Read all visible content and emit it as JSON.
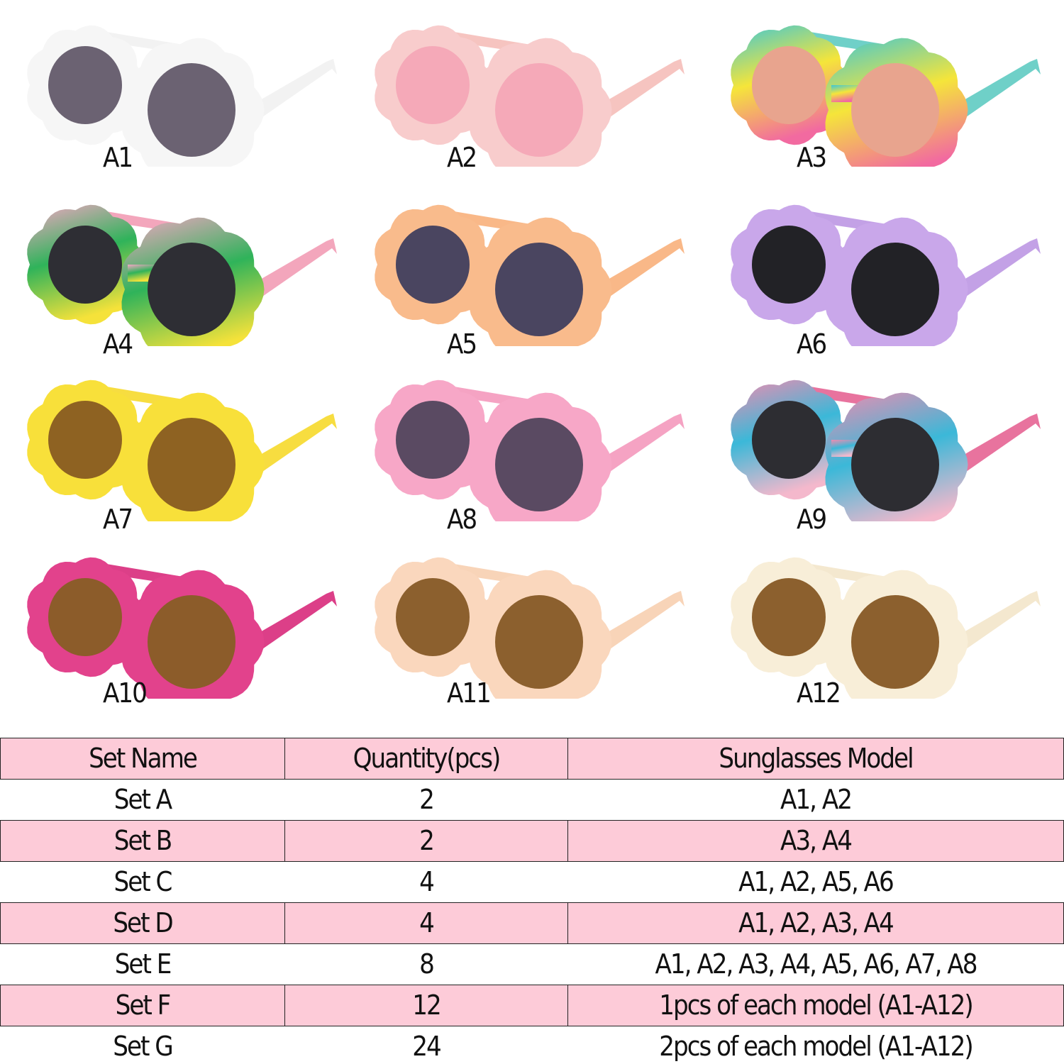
{
  "products": [
    {
      "label": "A1",
      "frame": [
        "#f6f6f6"
      ],
      "lens": "#6b6272",
      "arm": "#f2f2f2"
    },
    {
      "label": "A2",
      "frame": [
        "#f8cccc"
      ],
      "lens": "#f5a9b8",
      "arm": "#f6c4c0"
    },
    {
      "label": "A3",
      "frame": [
        "#3ec7d6",
        "#f5e53a",
        "#f26aa0"
      ],
      "lens": "#e8a48e",
      "arm": "#6fd0c8"
    },
    {
      "label": "A4",
      "frame": [
        "#f4a6c4",
        "#2fb35a",
        "#f5e23a"
      ],
      "lens": "#2e2e34",
      "arm": "#f3a6bc"
    },
    {
      "label": "A5",
      "frame": [
        "#f9bb8c"
      ],
      "lens": "#4a4560",
      "arm": "#f9b888"
    },
    {
      "label": "A6",
      "frame": [
        "#c9a7ea"
      ],
      "lens": "#222226",
      "arm": "#c3a1e6"
    },
    {
      "label": "A7",
      "frame": [
        "#f8e03a"
      ],
      "lens": "#8e6222",
      "arm": "#f7dd40"
    },
    {
      "label": "A8",
      "frame": [
        "#f7a7c7"
      ],
      "lens": "#5a4a62",
      "arm": "#f5a3c3"
    },
    {
      "label": "A9",
      "frame": [
        "#f08cb0",
        "#3bb8d8",
        "#f4b8cc"
      ],
      "lens": "#2d2d32",
      "arm": "#e8739e"
    },
    {
      "label": "A10",
      "frame": [
        "#e2428c"
      ],
      "lens": "#8c5c2a",
      "arm": "#dc3f88"
    },
    {
      "label": "A11",
      "frame": [
        "#fad7bd"
      ],
      "lens": "#8c602e",
      "arm": "#f8d4b8"
    },
    {
      "label": "A12",
      "frame": [
        "#f8eed8"
      ],
      "lens": "#8c602e",
      "arm": "#f4e8cf"
    }
  ],
  "table": {
    "headers": [
      "Set Name",
      "Quantity(pcs)",
      "Sunglasses Model"
    ],
    "rows": [
      [
        "Set A",
        "2",
        "A1, A2"
      ],
      [
        "Set B",
        "2",
        "A3, A4"
      ],
      [
        "Set C",
        "4",
        "A1, A2, A5, A6"
      ],
      [
        "Set D",
        "4",
        "A1, A2, A3, A4"
      ],
      [
        "Set E",
        "8",
        "A1, A2, A3, A4, A5, A6, A7, A8"
      ],
      [
        "Set F",
        "12",
        "1pcs of each model (A1-A12)"
      ],
      [
        "Set G",
        "24",
        "2pcs of each model (A1-A12)"
      ]
    ],
    "colors": {
      "pink": "#fdcbd8",
      "border": "#222222"
    }
  }
}
